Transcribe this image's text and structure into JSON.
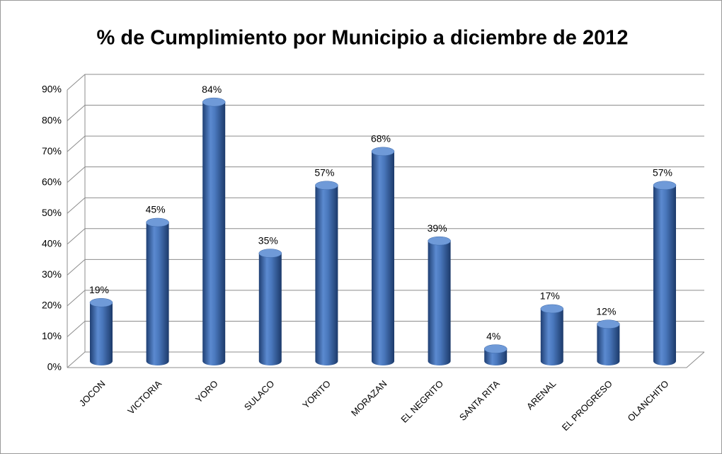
{
  "chart_data": {
    "type": "bar3d",
    "title": "% de Cumplimiento por Municipio a diciembre de 2012",
    "categories": [
      "JOCON",
      "VICTORIA",
      "YORO",
      "SULACO",
      "YORITO",
      "MORAZAN",
      "EL NEGRITO",
      "SANTA RITA",
      "ARENAL",
      "EL PROGRESO",
      "OLANCHITO"
    ],
    "values": [
      19,
      45,
      84,
      35,
      57,
      68,
      39,
      4,
      17,
      12,
      57
    ],
    "value_labels": [
      "19%",
      "45%",
      "84%",
      "35%",
      "57%",
      "68%",
      "39%",
      "4%",
      "17%",
      "12%",
      "57%"
    ],
    "color": "#3f6fb5",
    "ylim": [
      0,
      90
    ],
    "yticks": [
      {
        "value": 0,
        "label": "0%"
      },
      {
        "value": 10,
        "label": "10%"
      },
      {
        "value": 20,
        "label": "20%"
      },
      {
        "value": 30,
        "label": "30%"
      },
      {
        "value": 40,
        "label": "40%"
      },
      {
        "value": 50,
        "label": "50%"
      },
      {
        "value": 60,
        "label": "60%"
      },
      {
        "value": 70,
        "label": "70%"
      },
      {
        "value": 80,
        "label": "80%"
      },
      {
        "value": 90,
        "label": "90%"
      }
    ],
    "grid": true
  }
}
